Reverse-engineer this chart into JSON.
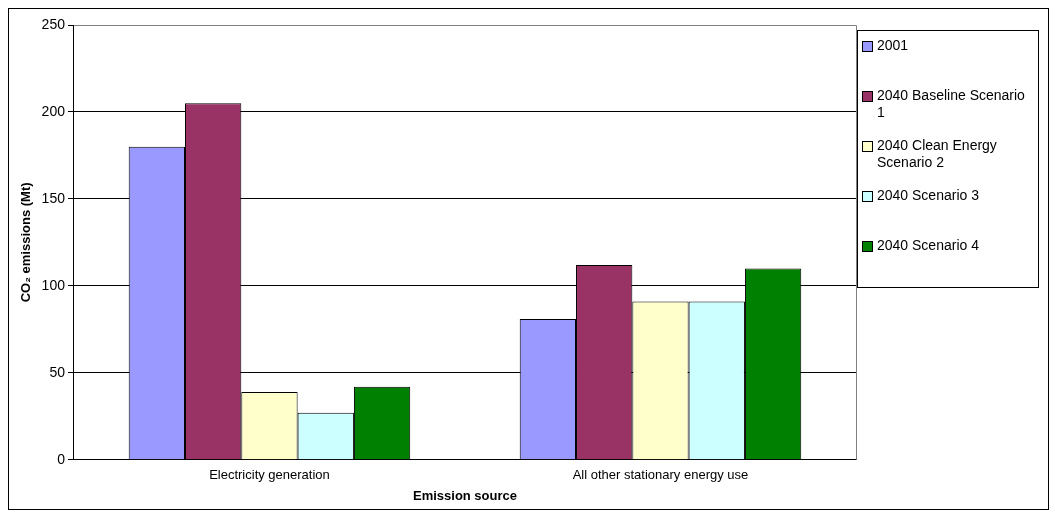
{
  "chart_data": {
    "type": "bar",
    "xlabel": "Emission source",
    "ylabel": "CO₂ emissions (Mt)",
    "categories": [
      "Electricity generation",
      "All other stationary energy use"
    ],
    "series": [
      {
        "name": "2001",
        "color": "#9999ff",
        "values": [
          180,
          81
        ]
      },
      {
        "name": "2040 Baseline Scenario 1",
        "color": "#993366",
        "values": [
          205,
          112
        ]
      },
      {
        "name": "2040 Clean Energy Scenario 2",
        "color": "#ffffcc",
        "values": [
          39,
          91
        ]
      },
      {
        "name": "2040 Scenario 3",
        "color": "#ccffff",
        "values": [
          27,
          91
        ]
      },
      {
        "name": "2040 Scenario 4",
        "color": "#008000",
        "values": [
          42,
          110
        ]
      }
    ],
    "ylim": [
      0,
      250
    ],
    "yticks": [
      0,
      50,
      100,
      150,
      200,
      250
    ],
    "grid": "y",
    "legend": "right"
  }
}
